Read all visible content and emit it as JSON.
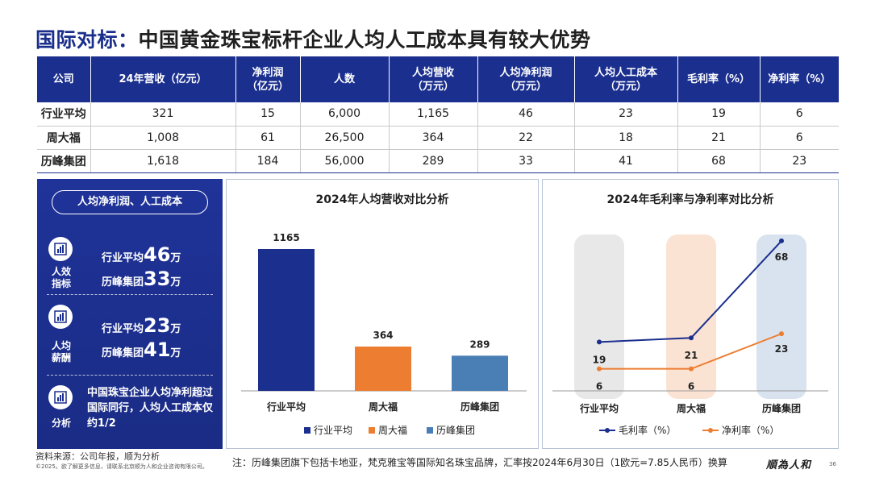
{
  "title": {
    "highlight": "国际对标：",
    "rest": "中国黄金珠宝标杆企业人均人工成本具有较大优势"
  },
  "table": {
    "headers": [
      "公司",
      "24年营收（亿元）",
      "净利润\n（亿元）",
      "人数",
      "人均营收\n（万元）",
      "人均净利润\n（万元）",
      "人均人工成本\n（万元）",
      "毛利率（%）",
      "净利率（%）"
    ],
    "rows": [
      [
        "行业平均",
        "321",
        "15",
        "6,000",
        "1,165",
        "46",
        "23",
        "19",
        "6"
      ],
      [
        "周大福",
        "1,008",
        "61",
        "26,500",
        "364",
        "22",
        "18",
        "21",
        "6"
      ],
      [
        "历峰集团",
        "1,618",
        "184",
        "56,000",
        "289",
        "33",
        "41",
        "68",
        "23"
      ]
    ]
  },
  "side_panel": {
    "pill": "人均净利润、人工成本",
    "sections": [
      {
        "label": "人效\n指标",
        "lines": [
          {
            "name": "行业平均",
            "value": "46",
            "unit": "万"
          },
          {
            "name": "历峰集团",
            "value": "33",
            "unit": "万"
          }
        ]
      },
      {
        "label": "人均\n薪酬",
        "lines": [
          {
            "name": "行业平均",
            "value": "23",
            "unit": "万"
          },
          {
            "name": "历峰集团",
            "value": "41",
            "unit": "万"
          }
        ]
      },
      {
        "label": "分析",
        "note": "中国珠宝企业人均净利超过国际同行，人均人工成本仅约1/2"
      }
    ]
  },
  "chart_data": [
    {
      "type": "bar",
      "title": "2024年人均营收对比分析",
      "categories": [
        "行业平均",
        "周大福",
        "历峰集团"
      ],
      "values": [
        1165,
        364,
        289
      ],
      "colors": [
        "#1b2f8f",
        "#ed7d31",
        "#4a7fb5"
      ],
      "legend": [
        "行业平均",
        "周大福",
        "历峰集团"
      ],
      "legend_position": "bottom"
    },
    {
      "type": "line",
      "title": "2024年毛利率与净利率对比分析",
      "categories": [
        "行业平均",
        "周大福",
        "历峰集团"
      ],
      "series": [
        {
          "name": "毛利率（%）",
          "values": [
            19,
            21,
            68
          ],
          "color": "#1b2f8f"
        },
        {
          "name": "净利率（%）",
          "values": [
            6,
            6,
            23
          ],
          "color": "#ed7d31"
        }
      ],
      "column_highlights": [
        "#e8e8e8",
        "#fbe3d4",
        "#d9e3ef"
      ],
      "legend_position": "bottom"
    }
  ],
  "footer": {
    "source": "资料来源：公司年报，顺为分析",
    "copyright": "©2025。欲了解更多信息，请联系北京顺为人和企业咨询有限公司。",
    "note": "注：历峰集团旗下包括卡地亚，梵克雅宝等国际知名珠宝品牌，汇率按2024年6月30日（1欧元=7.85人民币）换算",
    "logo": "順為人和",
    "page": "36"
  }
}
